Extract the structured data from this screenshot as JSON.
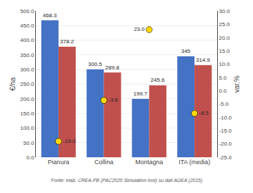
{
  "chart_data": {
    "type": "bar",
    "categories": [
      "Pianura",
      "Collina",
      "Montagna",
      "ITA (media)"
    ],
    "series": [
      {
        "type": "bar",
        "color": "#4472C4",
        "values": [
          468.3,
          300.5,
          199.7,
          345.0
        ]
      },
      {
        "type": "bar",
        "color": "#C0504D",
        "values": [
          378.2,
          289.8,
          245.6,
          314.9
        ]
      },
      {
        "type": "scatter",
        "axis": "y2",
        "marker": "circle",
        "color": "#FFD700",
        "values": [
          -19.0,
          -3.6,
          23.0,
          -8.5
        ],
        "value_labels": [
          "-19.0",
          "-3.6",
          "23.0",
          "-8.5"
        ]
      }
    ],
    "ylabel": "€/ha",
    "y2label": "var.%",
    "ylim": [
      0,
      500
    ],
    "yticks": [
      {
        "value": 0,
        "label": "0.0"
      },
      {
        "value": 50,
        "label": "50.0"
      },
      {
        "value": 100,
        "label": "100.0"
      },
      {
        "value": 150,
        "label": "150.0"
      },
      {
        "value": 200,
        "label": "200.0"
      },
      {
        "value": 250,
        "label": "250.0"
      },
      {
        "value": 300,
        "label": "300.0"
      },
      {
        "value": 350,
        "label": "350.0"
      },
      {
        "value": 400,
        "label": "400.0"
      },
      {
        "value": 450,
        "label": "450.0"
      },
      {
        "value": 500,
        "label": "500.0"
      }
    ],
    "y2lim": [
      -25,
      30
    ],
    "y2ticks": [
      {
        "value": -25,
        "label": "-25.0"
      },
      {
        "value": -20,
        "label": "-20.0"
      },
      {
        "value": -15,
        "label": "-15.0"
      },
      {
        "value": -10,
        "label": "-10.0"
      },
      {
        "value": -5,
        "label": "-5.0"
      },
      {
        "value": 0,
        "label": "0.0"
      },
      {
        "value": 5,
        "label": "5.0"
      },
      {
        "value": 10,
        "label": "10.0"
      },
      {
        "value": 15,
        "label": "15.0"
      },
      {
        "value": 20,
        "label": "20.0"
      },
      {
        "value": 25,
        "label": "25.0"
      },
      {
        "value": 30,
        "label": "30.0"
      }
    ],
    "grid": true,
    "data_labels": true,
    "annotations": [
      "Fonte: elab. CREA-PB (PAC2020 Simulation tool) su dati AGEA (2015)"
    ]
  }
}
